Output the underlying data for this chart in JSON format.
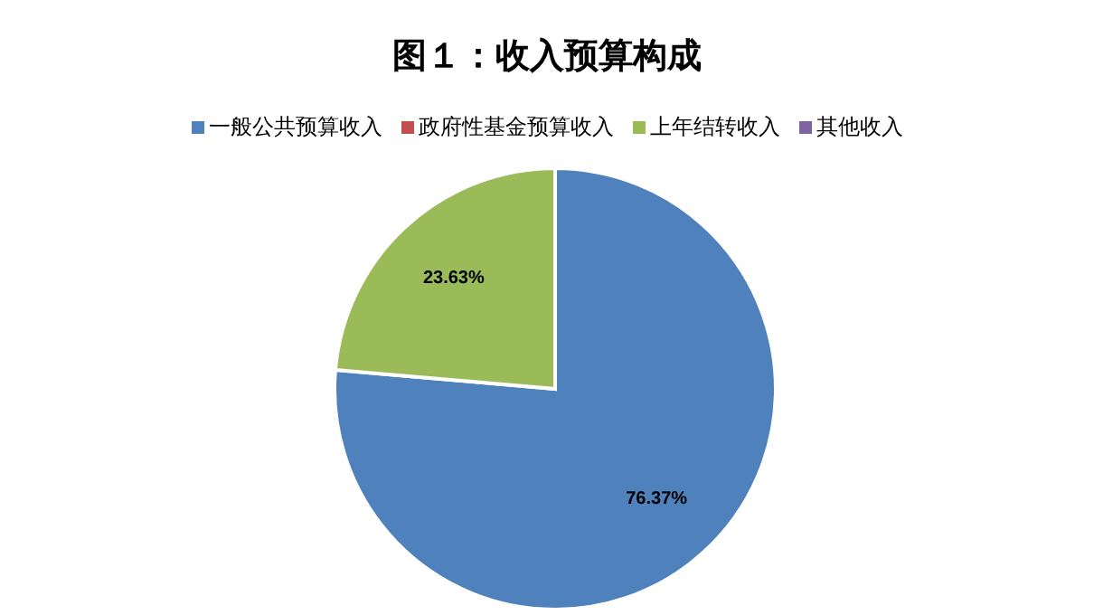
{
  "chart_data": {
    "type": "pie",
    "title": "图１：收入预算构成",
    "categories": [
      "一般公共预算收入",
      "政府性基金预算收入",
      "上年结转收入",
      "其他收入"
    ],
    "values": [
      76.37,
      0,
      23.63,
      0
    ],
    "colors": [
      "#4f81bd",
      "#c0504d",
      "#9bbb59",
      "#8064a2"
    ],
    "value_labels": [
      "76.37%",
      null,
      "23.63%",
      null
    ],
    "legend": "top"
  }
}
